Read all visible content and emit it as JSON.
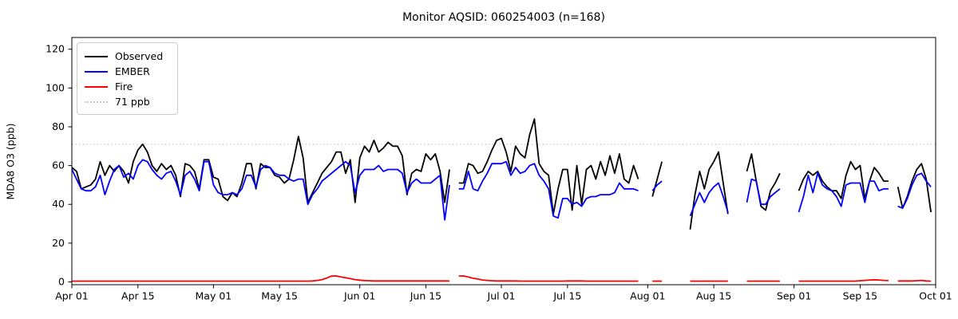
{
  "chart_data": {
    "type": "line",
    "title": "Monitor AQSID: 060254003 (n=168)",
    "ylabel": "MDA8 O3 (ppb)",
    "xlabel": "",
    "x_start_date": "Apr 01",
    "x_end_date": "Oct 01",
    "frequency": "daily",
    "n_points_label": 168,
    "ylim": [
      -1.5,
      126
    ],
    "yticks": [
      0,
      20,
      40,
      60,
      80,
      100,
      120
    ],
    "xticks": {
      "labels": [
        "Apr 01",
        "Apr 15",
        "May 01",
        "May 15",
        "Jun 01",
        "Jun 15",
        "Jul 01",
        "Jul 15",
        "Aug 01",
        "Aug 15",
        "Sep 01",
        "Sep 15",
        "Oct 01"
      ],
      "day_offsets": [
        0,
        14,
        30,
        44,
        61,
        75,
        91,
        105,
        122,
        136,
        153,
        167,
        183
      ]
    },
    "threshold": {
      "value": 71,
      "label": "71 ppb",
      "color": "#c9c9c9",
      "style": "dotted"
    },
    "grid": false,
    "legend_position": "upper left",
    "legend": [
      {
        "label": "Observed",
        "color": "#000000",
        "style": "solid"
      },
      {
        "label": "EMBER",
        "color": "#0000ff",
        "style": "solid"
      },
      {
        "label": "Fire",
        "color": "#ff0000",
        "style": "solid"
      },
      {
        "label": "71 ppb",
        "color": "#c9c9c9",
        "style": "dotted"
      }
    ],
    "series": [
      {
        "name": "Observed",
        "color": "#000000",
        "values": [
          59,
          57,
          48,
          49,
          50,
          53,
          62,
          55,
          60,
          57,
          60,
          57,
          51,
          62,
          68,
          71,
          67,
          60,
          57,
          61,
          58,
          60,
          55,
          44,
          61,
          60,
          57,
          48,
          63,
          63,
          54,
          53,
          44,
          42,
          46,
          44,
          51,
          61,
          61,
          48,
          61,
          59,
          59,
          55,
          54,
          51,
          53,
          63,
          75,
          64,
          41,
          46,
          51,
          56,
          59,
          62,
          67,
          67,
          56,
          63,
          41,
          64,
          70,
          67,
          73,
          67,
          69,
          72,
          70,
          70,
          65,
          45,
          56,
          58,
          57,
          66,
          63,
          66,
          57,
          41,
          58,
          null,
          51,
          51,
          61,
          60,
          56,
          57,
          62,
          68,
          73,
          74,
          67,
          57,
          70,
          66,
          64,
          76,
          84,
          61,
          57,
          55,
          35,
          48,
          58,
          58,
          37,
          60,
          40,
          58,
          60,
          53,
          62,
          55,
          65,
          56,
          66,
          53,
          51,
          60,
          53,
          null,
          null,
          44,
          53,
          62,
          null,
          null,
          null,
          null,
          null,
          27,
          45,
          57,
          48,
          58,
          62,
          67,
          51,
          35,
          null,
          null,
          null,
          57,
          66,
          52,
          39,
          37,
          47,
          51,
          56,
          null,
          null,
          null,
          47,
          53,
          57,
          55,
          57,
          52,
          49,
          47,
          47,
          43,
          55,
          62,
          58,
          60,
          43,
          52,
          59,
          56,
          52,
          52,
          null,
          49,
          38,
          44,
          52,
          58,
          61,
          53,
          36
        ]
      },
      {
        "name": "EMBER",
        "color": "#0000ff",
        "values": [
          58,
          53,
          48,
          47,
          47,
          49,
          55,
          45,
          52,
          58,
          60,
          54,
          56,
          53,
          60,
          63,
          62,
          58,
          55,
          53,
          56,
          57,
          52,
          45,
          55,
          57,
          53,
          47,
          62,
          62,
          50,
          46,
          45,
          45,
          46,
          45,
          48,
          55,
          55,
          49,
          58,
          60,
          59,
          56,
          55,
          55,
          53,
          52,
          53,
          53,
          40,
          45,
          48,
          52,
          54,
          56,
          58,
          60,
          62,
          60,
          46,
          55,
          58,
          58,
          58,
          60,
          57,
          58,
          58,
          58,
          56,
          46,
          51,
          53,
          51,
          51,
          51,
          53,
          55,
          32,
          50,
          null,
          48,
          48,
          57,
          48,
          47,
          52,
          56,
          61,
          61,
          61,
          62,
          55,
          59,
          56,
          57,
          60,
          61,
          55,
          52,
          48,
          34,
          33,
          43,
          43,
          40,
          41,
          39,
          43,
          44,
          44,
          45,
          45,
          45,
          46,
          51,
          48,
          48,
          48,
          47,
          null,
          null,
          47,
          50,
          52,
          null,
          null,
          null,
          null,
          null,
          34,
          40,
          46,
          41,
          46,
          49,
          51,
          44,
          36,
          null,
          null,
          null,
          41,
          53,
          52,
          40,
          40,
          44,
          46,
          48,
          null,
          null,
          null,
          36,
          44,
          55,
          46,
          56,
          50,
          48,
          47,
          44,
          39,
          50,
          51,
          51,
          51,
          41,
          52,
          52,
          47,
          48,
          48,
          null,
          39,
          38,
          43,
          50,
          55,
          56,
          52,
          49
        ]
      },
      {
        "name": "Fire",
        "color": "#ff0000",
        "values": [
          0.4,
          0.4,
          0.4,
          0.4,
          0.4,
          0.4,
          0.4,
          0.4,
          0.4,
          0.4,
          0.4,
          0.4,
          0.4,
          0.4,
          0.4,
          0.4,
          0.4,
          0.4,
          0.4,
          0.4,
          0.4,
          0.4,
          0.4,
          0.4,
          0.4,
          0.4,
          0.4,
          0.4,
          0.4,
          0.4,
          0.4,
          0.4,
          0.4,
          0.4,
          0.4,
          0.4,
          0.4,
          0.4,
          0.4,
          0.4,
          0.4,
          0.4,
          0.4,
          0.4,
          0.4,
          0.4,
          0.4,
          0.4,
          0.4,
          0.4,
          0.4,
          0.5,
          0.8,
          1.2,
          2.0,
          3.0,
          3.1,
          2.6,
          2.2,
          1.7,
          1.2,
          0.9,
          0.7,
          0.6,
          0.5,
          0.5,
          0.5,
          0.5,
          0.5,
          0.5,
          0.5,
          0.5,
          0.5,
          0.5,
          0.5,
          0.5,
          0.5,
          0.5,
          0.5,
          0.5,
          0.5,
          null,
          3.0,
          3.1,
          2.5,
          1.9,
          1.5,
          1.0,
          0.8,
          0.6,
          0.5,
          0.5,
          0.5,
          0.5,
          0.5,
          0.4,
          0.4,
          0.4,
          0.4,
          0.4,
          0.4,
          0.4,
          0.4,
          0.4,
          0.4,
          0.5,
          0.5,
          0.5,
          0.5,
          0.4,
          0.4,
          0.4,
          0.4,
          0.4,
          0.4,
          0.4,
          0.4,
          0.4,
          0.4,
          0.4,
          0.4,
          null,
          null,
          0.4,
          0.4,
          0.4,
          null,
          null,
          null,
          null,
          null,
          0.4,
          0.4,
          0.4,
          0.4,
          0.4,
          0.4,
          0.4,
          0.4,
          0.4,
          null,
          null,
          null,
          0.4,
          0.4,
          0.4,
          0.4,
          0.4,
          0.4,
          0.4,
          0.4,
          null,
          null,
          null,
          0.4,
          0.4,
          0.4,
          0.4,
          0.4,
          0.4,
          0.4,
          0.4,
          0.4,
          0.4,
          0.4,
          0.4,
          0.4,
          0.6,
          0.8,
          1.0,
          1.1,
          1.0,
          0.8,
          0.7,
          null,
          0.5,
          0.5,
          0.5,
          0.5,
          0.6,
          0.8,
          0.5,
          0.4
        ]
      }
    ]
  },
  "layout_colors": {
    "axis": "#000000",
    "background": "#ffffff",
    "legend_border": "#cccccc"
  }
}
